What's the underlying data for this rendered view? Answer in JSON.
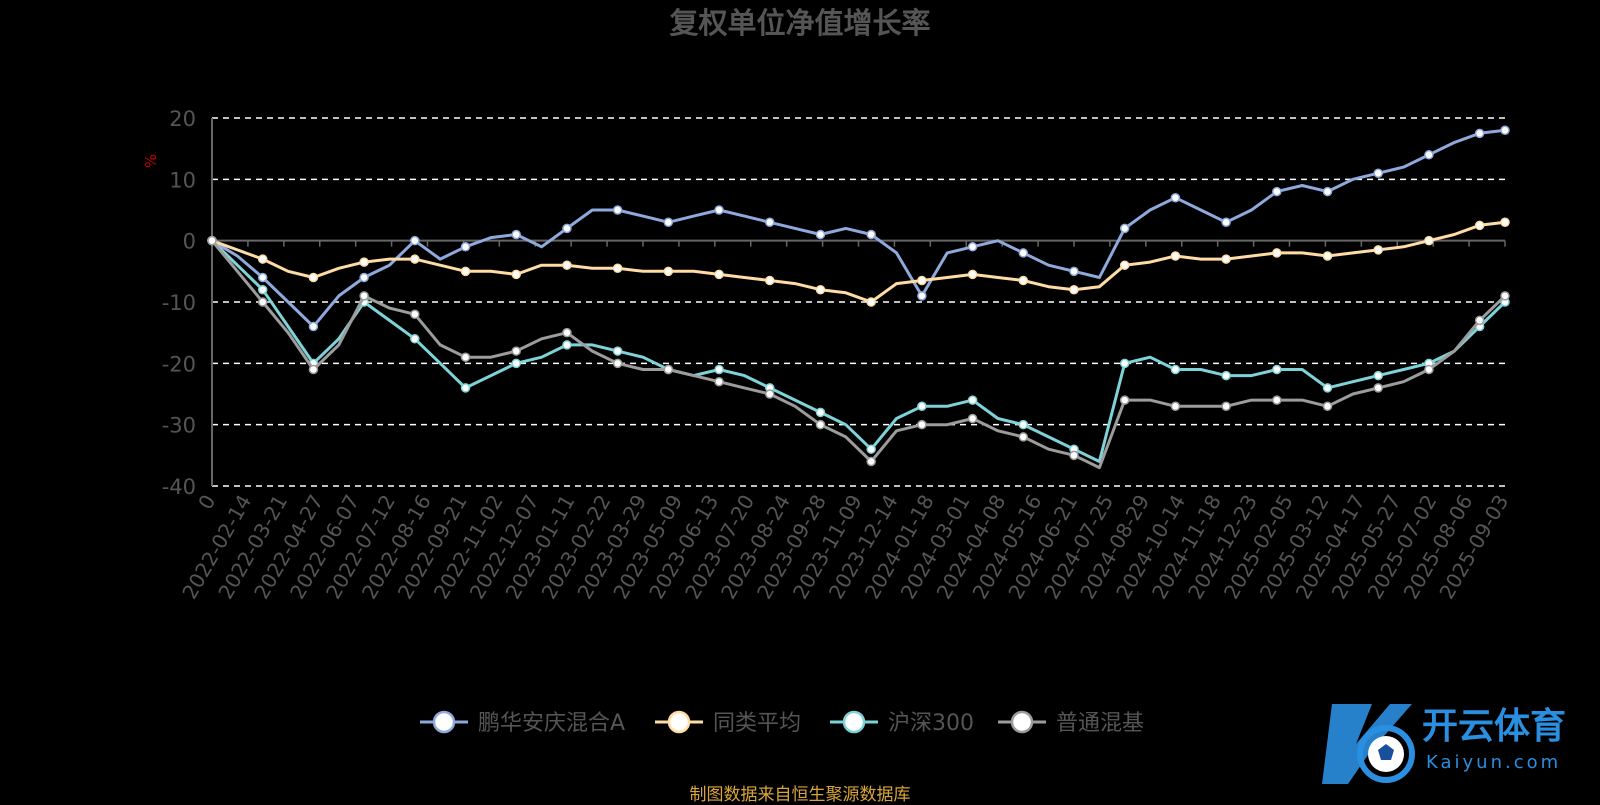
{
  "chart_data": {
    "type": "line",
    "title": "复权单位净值增长率",
    "ylabel": "%",
    "ylim": [
      -40,
      20
    ],
    "yticks": [
      -40,
      -30,
      -20,
      -10,
      0,
      10,
      20
    ],
    "grid": true,
    "legend_position": "bottom",
    "x_tick_labels": [
      "0",
      "2022-02-14",
      "2022-03-21",
      "2022-04-27",
      "2022-06-07",
      "2022-07-12",
      "2022-08-16",
      "2022-09-21",
      "2022-11-02",
      "2022-12-07",
      "2023-01-11",
      "2023-02-22",
      "2023-03-29",
      "2023-05-09",
      "2023-06-13",
      "2023-07-20",
      "2023-08-24",
      "2023-09-28",
      "2023-11-09",
      "2023-12-14",
      "2024-01-18",
      "2024-03-01",
      "2024-04-08",
      "2024-05-16",
      "2024-06-21",
      "2024-07-25",
      "2024-08-29",
      "2024-10-14",
      "2024-11-18",
      "2024-12-23",
      "2025-02-05",
      "2025-03-12",
      "2025-04-17",
      "2025-05-27",
      "2025-07-02",
      "2025-08-06",
      "2025-09-03"
    ],
    "series": [
      {
        "name": "鹏华安庆混合A",
        "color": "#8fa9dc",
        "values": [
          0,
          -2.5,
          -6,
          -10,
          -14,
          -9,
          -6,
          -4,
          0,
          -3,
          -1,
          0.5,
          1,
          -1,
          2,
          5,
          5,
          4,
          3,
          4,
          5,
          4,
          3,
          2,
          1,
          2,
          1,
          -2,
          -9,
          -2,
          -1,
          0,
          -2,
          -4,
          -5,
          -6,
          2,
          5,
          7,
          5,
          3,
          5,
          8,
          9,
          8,
          10,
          11,
          12,
          14,
          16,
          17.5,
          18
        ]
      },
      {
        "name": "同类平均",
        "color": "#ffdca5",
        "values": [
          0,
          -1.5,
          -3,
          -5,
          -6,
          -4.5,
          -3.5,
          -3,
          -3,
          -4,
          -5,
          -5,
          -5.5,
          -4,
          -4,
          -4.5,
          -4.5,
          -5,
          -5,
          -5,
          -5.5,
          -6,
          -6.5,
          -7,
          -8,
          -8.5,
          -10,
          -7,
          -6.5,
          -6,
          -5.5,
          -6,
          -6.5,
          -7.5,
          -8,
          -7.5,
          -4,
          -3.5,
          -2.5,
          -3,
          -3,
          -2.5,
          -2,
          -2,
          -2.5,
          -2,
          -1.5,
          -1,
          0,
          1,
          2.5,
          3
        ]
      },
      {
        "name": "沪深300",
        "color": "#7ed3d9",
        "values": [
          0,
          -4,
          -8,
          -14,
          -20,
          -16,
          -10,
          -13,
          -16,
          -20,
          -24,
          -22,
          -20,
          -19,
          -17,
          -17,
          -18,
          -19,
          -21,
          -22,
          -21,
          -22,
          -24,
          -26,
          -28,
          -30,
          -34,
          -29,
          -27,
          -27,
          -26,
          -29,
          -30,
          -32,
          -34,
          -36,
          -20,
          -19,
          -21,
          -21,
          -22,
          -22,
          -21,
          -21,
          -24,
          -23,
          -22,
          -21,
          -20,
          -18,
          -14,
          -10
        ]
      },
      {
        "name": "普通混基",
        "color": "#9c9c9c",
        "values": [
          0,
          -5,
          -10,
          -15,
          -21,
          -17,
          -9,
          -11,
          -12,
          -17,
          -19,
          -19,
          -18,
          -16,
          -15,
          -18,
          -20,
          -21,
          -21,
          -22,
          -23,
          -24,
          -25,
          -27,
          -30,
          -32,
          -36,
          -31,
          -30,
          -30,
          -29,
          -31,
          -32,
          -34,
          -35,
          -37,
          -26,
          -26,
          -27,
          -27,
          -27,
          -26,
          -26,
          -26,
          -27,
          -25,
          -24,
          -23,
          -21,
          -18,
          -13,
          -9
        ]
      }
    ]
  },
  "source": "制图数据来自恒生聚源数据库",
  "watermark": {
    "name": "开云体育",
    "sub": "Kaiyun.com",
    "icon": "soccer-ball-icon"
  },
  "colors": {
    "background": "#000000",
    "title": "#555555",
    "axis_text": "#555555",
    "ylabel": "#c00000",
    "source": "#d9a63a",
    "watermark": "#2a8fe0"
  }
}
